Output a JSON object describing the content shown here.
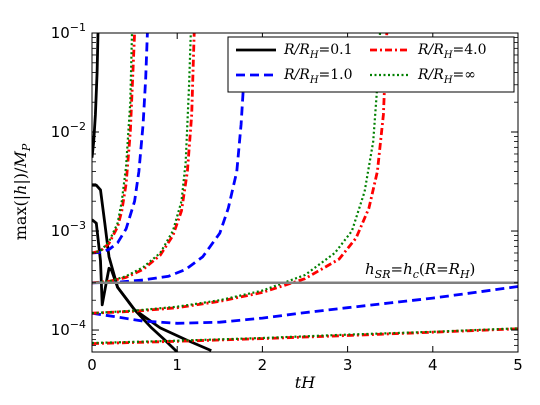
{
  "chart_data": {
    "type": "line",
    "xlabel": "tH",
    "ylabel": "max(|h|)/M_P",
    "xscale": "linear",
    "yscale": "log",
    "xlim": [
      0,
      5
    ],
    "ylim": [
      6e-05,
      0.1
    ],
    "xticks": [
      0,
      1,
      2,
      3,
      4,
      5
    ],
    "yticks": [
      0.0001,
      0.001,
      0.01,
      0.1
    ],
    "ytick_labels": [
      "10^-4",
      "10^-3",
      "10^-2",
      "10^-1"
    ],
    "legend_location": "top-right",
    "legend_columns": 2,
    "series": [
      {
        "name": "R/R_H=0.1",
        "color": "#000000",
        "style": "solid",
        "curves": [
          [
            [
              0.0,
              0.0055
            ],
            [
              0.02,
              0.008
            ],
            [
              0.04,
              0.015
            ],
            [
              0.06,
              0.04
            ],
            [
              0.07,
              0.1
            ]
          ],
          [
            [
              0.0,
              0.0029
            ],
            [
              0.05,
              0.0029
            ],
            [
              0.1,
              0.0026
            ],
            [
              0.15,
              0.0012
            ],
            [
              0.2,
              0.00055
            ],
            [
              0.3,
              0.00027
            ],
            [
              0.5,
              0.00016
            ],
            [
              0.8,
              0.000105
            ],
            [
              1.1,
              8e-05
            ],
            [
              1.4,
              6.2e-05
            ]
          ],
          [
            [
              0.0,
              0.0013
            ],
            [
              0.05,
              0.0012
            ],
            [
              0.1,
              0.0005
            ],
            [
              0.12,
              0.00018
            ],
            [
              0.17,
              0.00031
            ],
            [
              0.2,
              0.00042
            ],
            [
              0.23,
              0.0004
            ],
            [
              0.3,
              0.00027
            ],
            [
              0.5,
              0.00016
            ],
            [
              0.7,
              0.000105
            ],
            [
              0.85,
              8e-05
            ],
            [
              1.0,
              6e-05
            ]
          ]
        ]
      },
      {
        "name": "R/R_H=1.0",
        "color": "#0000ff",
        "style": "dashed",
        "curves": [
          [
            [
              0.0,
              0.0006
            ],
            [
              0.1,
              0.00061
            ],
            [
              0.2,
              0.00065
            ],
            [
              0.3,
              0.00076
            ],
            [
              0.4,
              0.00105
            ],
            [
              0.5,
              0.002
            ],
            [
              0.55,
              0.004
            ],
            [
              0.6,
              0.012
            ],
            [
              0.63,
              0.035
            ],
            [
              0.65,
              0.1
            ]
          ],
          [
            [
              0.0,
              0.0003
            ],
            [
              0.3,
              0.000304
            ],
            [
              0.6,
              0.00032
            ],
            [
              0.9,
              0.00035
            ],
            [
              1.1,
              0.00041
            ],
            [
              1.3,
              0.00055
            ],
            [
              1.5,
              0.00095
            ],
            [
              1.6,
              0.0017
            ],
            [
              1.7,
              0.004
            ],
            [
              1.75,
              0.012
            ],
            [
              1.8,
              0.06
            ],
            [
              1.82,
              0.1
            ]
          ],
          [
            [
              0.0,
              0.000148
            ],
            [
              0.3,
              0.000135
            ],
            [
              0.6,
              0.000123
            ],
            [
              1.0,
              0.000117
            ],
            [
              1.5,
              0.00012
            ],
            [
              2.0,
              0.000132
            ],
            [
              2.5,
              0.00015
            ],
            [
              3.0,
              0.000168
            ],
            [
              3.5,
              0.000188
            ],
            [
              4.0,
              0.00021
            ],
            [
              4.5,
              0.00024
            ],
            [
              5.0,
              0.000275
            ]
          ]
        ]
      },
      {
        "name": "R/R_H=4.0",
        "color": "#ff0000",
        "style": "dashdot",
        "curves": [
          [
            [
              0.0,
              0.0006
            ],
            [
              0.1,
              0.00063
            ],
            [
              0.2,
              0.00075
            ],
            [
              0.3,
              0.0011
            ],
            [
              0.35,
              0.0016
            ],
            [
              0.4,
              0.003
            ],
            [
              0.45,
              0.01
            ],
            [
              0.48,
              0.04
            ],
            [
              0.5,
              0.1
            ]
          ],
          [
            [
              0.0,
              0.0003
            ],
            [
              0.2,
              0.00031
            ],
            [
              0.4,
              0.00034
            ],
            [
              0.6,
              0.00041
            ],
            [
              0.8,
              0.00057
            ],
            [
              0.95,
              0.0009
            ],
            [
              1.05,
              0.0016
            ],
            [
              1.12,
              0.004
            ],
            [
              1.17,
              0.015
            ],
            [
              1.2,
              0.1
            ]
          ],
          [
            [
              0.0,
              0.000148
            ],
            [
              0.5,
              0.000155
            ],
            [
              1.0,
              0.000168
            ],
            [
              1.5,
              0.000195
            ],
            [
              2.0,
              0.00024
            ],
            [
              2.5,
              0.00033
            ],
            [
              2.9,
              0.00052
            ],
            [
              3.1,
              0.00085
            ],
            [
              3.25,
              0.0017
            ],
            [
              3.35,
              0.004
            ],
            [
              3.42,
              0.015
            ],
            [
              3.46,
              0.1
            ]
          ],
          [
            [
              0.0,
              7.3e-05
            ],
            [
              1.0,
              7.7e-05
            ],
            [
              2.0,
              8.2e-05
            ],
            [
              3.0,
              8.8e-05
            ],
            [
              4.0,
              9.5e-05
            ],
            [
              5.0,
              0.000103
            ]
          ]
        ]
      },
      {
        "name": "R/R_H=∞",
        "color": "#008000",
        "style": "dotted",
        "curves": [
          [
            [
              0.0,
              0.0006
            ],
            [
              0.1,
              0.00063
            ],
            [
              0.2,
              0.00078
            ],
            [
              0.3,
              0.0012
            ],
            [
              0.35,
              0.002
            ],
            [
              0.4,
              0.0045
            ],
            [
              0.45,
              0.02
            ],
            [
              0.47,
              0.1
            ]
          ],
          [
            [
              0.0,
              0.0003
            ],
            [
              0.2,
              0.00031
            ],
            [
              0.4,
              0.00035
            ],
            [
              0.6,
              0.00043
            ],
            [
              0.8,
              0.0006
            ],
            [
              0.95,
              0.001
            ],
            [
              1.05,
              0.002
            ],
            [
              1.1,
              0.005
            ],
            [
              1.14,
              0.03
            ],
            [
              1.16,
              0.1
            ]
          ],
          [
            [
              0.0,
              0.000148
            ],
            [
              0.5,
              0.000157
            ],
            [
              1.0,
              0.000172
            ],
            [
              1.5,
              0.0002
            ],
            [
              2.0,
              0.00025
            ],
            [
              2.5,
              0.00036
            ],
            [
              2.85,
              0.0006
            ],
            [
              3.05,
              0.001
            ],
            [
              3.2,
              0.0025
            ],
            [
              3.3,
              0.008
            ],
            [
              3.36,
              0.04
            ],
            [
              3.38,
              0.1
            ]
          ],
          [
            [
              0.0,
              7.4e-05
            ],
            [
              1.0,
              7.8e-05
            ],
            [
              2.0,
              8.3e-05
            ],
            [
              3.0,
              9e-05
            ],
            [
              4.0,
              9.6e-05
            ],
            [
              5.0,
              0.000104
            ]
          ]
        ]
      }
    ],
    "hlines": [
      {
        "y": 0.0003,
        "color": "#808080",
        "label": "h_SR = h_c(R = R_H)"
      }
    ]
  }
}
